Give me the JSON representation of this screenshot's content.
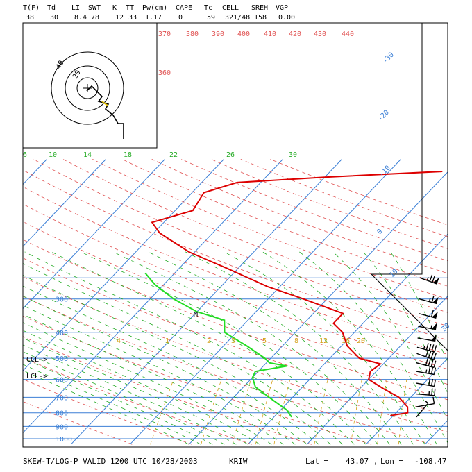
{
  "header": {
    "labels": [
      "T(F)",
      "Td",
      "LI",
      "SWT",
      "K",
      "TT",
      "Pw(cm)",
      "CAPE",
      "Tc",
      "CELL",
      "SREH",
      "VGP"
    ],
    "values": [
      "38",
      "30",
      "8.4",
      "78",
      "12",
      "33",
      "1.17",
      "0",
      "59",
      "321/48",
      "158",
      "0.00"
    ]
  },
  "footer": {
    "title": "SKEW-T/LOG-P VALID 1200 UTC 10/28/2003",
    "station": "KRIW",
    "lat_label": "Lat =",
    "lat": "43.07 ,",
    "lon_label": "Lon =",
    "lon": "-108.47"
  },
  "colors": {
    "isobar": "#3b7fd6",
    "isotherm": "#3b7fd6",
    "dry_adiabat": "#e05050",
    "moist_adiabat": "#22aa22",
    "mixing_ratio": "#d4a017",
    "temperature": "#dd0000",
    "dewpoint": "#22dd22",
    "hodograph": "#000000",
    "wind_barb": "#000000"
  },
  "chart_data": {
    "type": "skew-t log-p",
    "pressure_levels": [
      {
        "p": 300,
        "label": "300"
      },
      {
        "p": 400,
        "label": "400"
      },
      {
        "p": 500,
        "label": "500"
      },
      {
        "p": 600,
        "label": "600"
      },
      {
        "p": 700,
        "label": "700"
      },
      {
        "p": 800,
        "label": "800"
      },
      {
        "p": 900,
        "label": "900"
      },
      {
        "p": 1000,
        "label": "1000"
      }
    ],
    "isotherm_labels": [
      "-30",
      "-20",
      "-10",
      "0",
      "10",
      "30"
    ],
    "dry_adiabat_labels": [
      "370",
      "380",
      "390",
      "400",
      "410",
      "420",
      "430",
      "440",
      "360"
    ],
    "moist_labels": [
      "6",
      "10",
      "14",
      "18",
      "22",
      "26",
      "30"
    ],
    "mixing_labels": [
      "1",
      "2",
      "3",
      "4",
      "5",
      "8",
      "12",
      "16",
      "20"
    ],
    "markers": {
      "ccl": "CCL->",
      "lcl": "LCL->",
      "m": "M"
    },
    "temperature_profile": [
      [
        820,
        19.5
      ],
      [
        800,
        22.0
      ],
      [
        760,
        21.0
      ],
      [
        700,
        18.0
      ],
      [
        650,
        14.0
      ],
      [
        600,
        10.0
      ],
      [
        560,
        9.0
      ],
      [
        525,
        9.5
      ],
      [
        500,
        5.0
      ],
      [
        450,
        1.0
      ],
      [
        400,
        -2.0
      ],
      [
        370,
        -5.0
      ],
      [
        340,
        -5.0
      ],
      [
        300,
        -14.0
      ],
      [
        270,
        -22.0
      ],
      [
        230,
        -32.0
      ],
      [
        200,
        -41.0
      ],
      [
        170,
        -49.0
      ],
      [
        155,
        -52.0
      ],
      [
        140,
        -47.0
      ],
      [
        120,
        -48.0
      ],
      [
        110,
        -44.0
      ],
      [
        105,
        -30.0
      ],
      [
        100,
        -11.0
      ]
    ],
    "dewpoint_profile": [
      [
        830,
        3.0
      ],
      [
        780,
        1.0
      ],
      [
        700,
        -4.0
      ],
      [
        640,
        -8.0
      ],
      [
        590,
        -10.0
      ],
      [
        560,
        -10.5
      ],
      [
        535,
        -6.0
      ],
      [
        520,
        -9.5
      ],
      [
        500,
        -11.0
      ],
      [
        450,
        -16.0
      ],
      [
        400,
        -22.0
      ],
      [
        360,
        -24.0
      ],
      [
        335,
        -30.0
      ],
      [
        300,
        -36.0
      ],
      [
        265,
        -41.5
      ],
      [
        240,
        -45.0
      ]
    ],
    "hodograph_labels": [
      "40",
      "20"
    ],
    "wind_barbs": [
      {
        "p": 250,
        "dir": 290,
        "kt": 75
      },
      {
        "p": 300,
        "dir": 285,
        "kt": 65
      },
      {
        "p": 340,
        "dir": 285,
        "kt": 60
      },
      {
        "p": 380,
        "dir": 280,
        "kt": 55
      },
      {
        "p": 420,
        "dir": 280,
        "kt": 50
      },
      {
        "p": 455,
        "dir": 285,
        "kt": 45
      },
      {
        "p": 480,
        "dir": 290,
        "kt": 40
      },
      {
        "p": 520,
        "dir": 285,
        "kt": 40
      },
      {
        "p": 560,
        "dir": 280,
        "kt": 35
      },
      {
        "p": 620,
        "dir": 280,
        "kt": 30
      },
      {
        "p": 680,
        "dir": 275,
        "kt": 25
      },
      {
        "p": 760,
        "dir": 260,
        "kt": 10
      },
      {
        "p": 830,
        "dir": 220,
        "kt": 5
      }
    ]
  }
}
